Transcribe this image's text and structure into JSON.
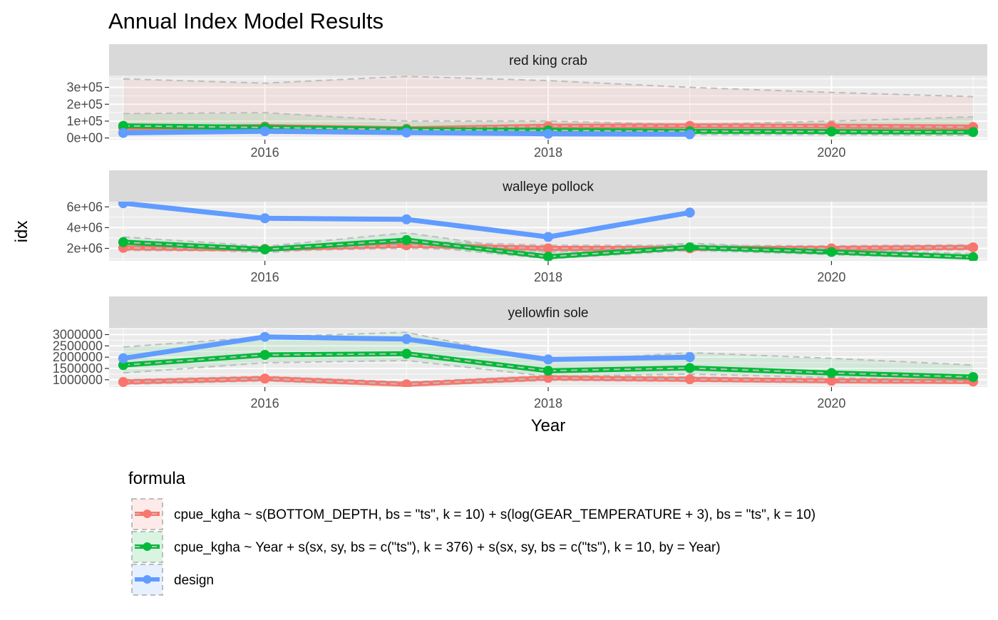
{
  "chart_data": {
    "type": "line",
    "title": "Annual Index Model Results",
    "xlabel": "Year",
    "ylabel": "idx",
    "x_range": [
      2014.9,
      2021.1
    ],
    "x_ticks": [
      2016,
      2018,
      2020
    ],
    "x_tick_labels": [
      "2016",
      "2018",
      "2020"
    ],
    "legend": {
      "title": "formula",
      "position": "bottom",
      "entries": [
        {
          "key": "depth",
          "label": "cpue_kgha ~ s(BOTTOM_DEPTH, bs = \"ts\", k = 10) + s(log(GEAR_TEMPERATURE + 3), bs = \"ts\", k = 10)",
          "color": "#F8766D"
        },
        {
          "key": "year",
          "label": "cpue_kgha ~ Year + s(sx, sy, bs = c(\"ts\"), k = 376) + s(sx, sy, bs = c(\"ts\"), k = 10, by = Year)",
          "color": "#00BA38"
        },
        {
          "key": "design",
          "label": "design",
          "color": "#619CFF"
        }
      ]
    },
    "facets": [
      {
        "title": "red king crab",
        "ylim": [
          -10000,
          370000
        ],
        "y_ticks": [
          0,
          100000,
          200000,
          300000
        ],
        "y_tick_labels": [
          "0e+00",
          "1e+05",
          "2e+05",
          "3e+05"
        ],
        "series": [
          {
            "key": "depth",
            "x": [
              2015,
              2016,
              2017,
              2018,
              2019,
              2020,
              2021
            ],
            "y": [
              60000,
              68000,
              55000,
              70000,
              72000,
              70000,
              65000
            ],
            "lower": [
              30000,
              35000,
              25000,
              30000,
              35000,
              38000,
              30000
            ],
            "upper": [
              350000,
              325000,
              365000,
              340000,
              300000,
              270000,
              245000
            ]
          },
          {
            "key": "year",
            "x": [
              2015,
              2016,
              2017,
              2018,
              2019,
              2020,
              2021
            ],
            "y": [
              72000,
              62000,
              50000,
              45000,
              40000,
              38000,
              35000
            ],
            "lower": [
              35000,
              28000,
              25000,
              20000,
              20000,
              20000,
              15000
            ],
            "upper": [
              145000,
              150000,
              100000,
              100000,
              80000,
              100000,
              125000
            ]
          },
          {
            "key": "design",
            "x": [
              2015,
              2016,
              2017,
              2018,
              2019
            ],
            "y": [
              30000,
              40000,
              32000,
              25000,
              22000
            ],
            "lower": [],
            "upper": []
          }
        ]
      },
      {
        "title": "walleye pollock",
        "ylim": [
          800000,
          6500000
        ],
        "y_ticks": [
          2000000,
          4000000,
          6000000
        ],
        "y_tick_labels": [
          "2e+06",
          "4e+06",
          "6e+06"
        ],
        "series": [
          {
            "key": "depth",
            "x": [
              2015,
              2016,
              2017,
              2018,
              2019,
              2020,
              2021
            ],
            "y": [
              2050000,
              1950000,
              2300000,
              2000000,
              2000000,
              2000000,
              2100000
            ],
            "lower": [
              1800000,
              1750000,
              2000000,
              1700000,
              1750000,
              1800000,
              1850000
            ],
            "upper": [
              2400000,
              2200000,
              2700000,
              2300000,
              2300000,
              2250000,
              2350000
            ]
          },
          {
            "key": "year",
            "x": [
              2015,
              2016,
              2017,
              2018,
              2019,
              2020,
              2021
            ],
            "y": [
              2600000,
              1900000,
              2800000,
              1200000,
              2100000,
              1650000,
              1150000
            ],
            "lower": [
              2100000,
              1600000,
              2300000,
              1000000,
              1800000,
              1400000,
              1000000
            ],
            "upper": [
              3100000,
              2200000,
              3500000,
              1600000,
              2500000,
              1900000,
              1500000
            ]
          },
          {
            "key": "design",
            "x": [
              2015,
              2016,
              2017,
              2018,
              2019
            ],
            "y": [
              6350000,
              4900000,
              4800000,
              3100000,
              5450000
            ],
            "lower": [],
            "upper": []
          }
        ]
      },
      {
        "title": "yellowfin sole",
        "ylim": [
          680000,
          3300000
        ],
        "y_ticks": [
          1000000,
          1500000,
          2000000,
          2500000,
          3000000
        ],
        "y_tick_labels": [
          "1000000",
          "1500000",
          "2000000",
          "2500000",
          "3000000"
        ],
        "series": [
          {
            "key": "depth",
            "x": [
              2015,
              2016,
              2017,
              2018,
              2019,
              2020,
              2021
            ],
            "y": [
              900000,
              1050000,
              800000,
              1080000,
              1020000,
              950000,
              920000
            ],
            "lower": [
              800000,
              950000,
              720000,
              980000,
              930000,
              870000,
              840000
            ],
            "upper": [
              1000000,
              1150000,
              900000,
              1180000,
              1120000,
              1030000,
              1000000
            ]
          },
          {
            "key": "year",
            "x": [
              2015,
              2016,
              2017,
              2018,
              2019,
              2020,
              2021
            ],
            "y": [
              1650000,
              2100000,
              2150000,
              1400000,
              1520000,
              1300000,
              1120000
            ],
            "lower": [
              1300000,
              1750000,
              1850000,
              1150000,
              1250000,
              1100000,
              950000
            ],
            "upper": [
              2450000,
              2900000,
              3100000,
              1800000,
              2200000,
              1950000,
              1650000
            ]
          },
          {
            "key": "design",
            "x": [
              2015,
              2016,
              2017,
              2018,
              2019
            ],
            "y": [
              1950000,
              2900000,
              2800000,
              1900000,
              2000000
            ],
            "lower": [],
            "upper": []
          }
        ]
      }
    ]
  }
}
